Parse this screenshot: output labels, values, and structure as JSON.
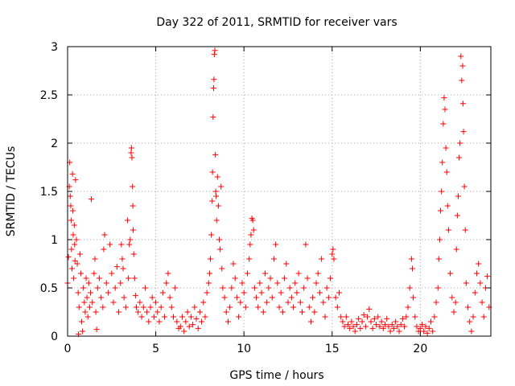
{
  "chart_data": {
    "type": "scatter",
    "title": "Day 322 of 2011, SRMTID for receiver vars",
    "xlabel": "GPS time / hours",
    "ylabel": "SRMTID / TECUs",
    "xlim": [
      0,
      24
    ],
    "ylim": [
      0,
      3
    ],
    "x_ticks": [
      0,
      5,
      10,
      15,
      20
    ],
    "x_tick_labels": [
      "0",
      "5",
      "10",
      "15",
      "20"
    ],
    "y_ticks": [
      0,
      0.5,
      1,
      1.5,
      2,
      2.5,
      3
    ],
    "y_tick_labels": [
      "0",
      "0.5",
      "1",
      "1.5",
      "2",
      "2.5",
      "3"
    ],
    "grid": true,
    "marker": "plus",
    "point_color": "#ff0000",
    "series": [
      {
        "points": [
          [
            0.0,
            0.55
          ],
          [
            0.05,
            0.82
          ],
          [
            0.1,
            1.55
          ],
          [
            0.12,
            1.8
          ],
          [
            0.15,
            1.45
          ],
          [
            0.18,
            1.35
          ],
          [
            0.2,
            1.2
          ],
          [
            0.22,
            0.9
          ],
          [
            0.25,
            0.7
          ],
          [
            0.28,
            1.68
          ],
          [
            0.3,
            1.3
          ],
          [
            0.32,
            1.05
          ],
          [
            0.35,
            0.6
          ],
          [
            0.38,
            1.15
          ],
          [
            0.4,
            0.95
          ],
          [
            0.42,
            0.78
          ],
          [
            0.45,
            1.62
          ],
          [
            0.5,
            1.0
          ],
          [
            0.55,
            0.75
          ],
          [
            0.6,
            0.45
          ],
          [
            0.62,
            0.02
          ],
          [
            0.65,
            0.3
          ],
          [
            0.7,
            0.85
          ],
          [
            0.75,
            0.65
          ],
          [
            0.8,
            0.15
          ],
          [
            0.85,
            0.05
          ],
          [
            0.9,
            0.5
          ],
          [
            0.95,
            0.35
          ],
          [
            1.0,
            0.25
          ],
          [
            1.05,
            0.6
          ],
          [
            1.1,
            0.4
          ],
          [
            1.15,
            0.2
          ],
          [
            1.2,
            0.55
          ],
          [
            1.25,
            0.3
          ],
          [
            1.3,
            0.45
          ],
          [
            1.35,
            1.42
          ],
          [
            1.4,
            0.35
          ],
          [
            1.5,
            0.65
          ],
          [
            1.55,
            0.8
          ],
          [
            1.6,
            0.25
          ],
          [
            1.65,
            0.07
          ],
          [
            1.7,
            0.5
          ],
          [
            1.8,
            0.6
          ],
          [
            1.9,
            0.4
          ],
          [
            2.0,
            0.3
          ],
          [
            2.05,
            0.9
          ],
          [
            2.1,
            1.05
          ],
          [
            2.2,
            0.55
          ],
          [
            2.3,
            0.45
          ],
          [
            2.4,
            0.95
          ],
          [
            2.5,
            0.65
          ],
          [
            2.6,
            0.35
          ],
          [
            2.7,
            0.5
          ],
          [
            2.8,
            0.72
          ],
          [
            2.9,
            0.25
          ],
          [
            3.0,
            0.55
          ],
          [
            3.05,
            0.95
          ],
          [
            3.1,
            0.8
          ],
          [
            3.15,
            0.7
          ],
          [
            3.2,
            0.4
          ],
          [
            3.3,
            0.3
          ],
          [
            3.4,
            1.2
          ],
          [
            3.45,
            0.6
          ],
          [
            3.5,
            0.95
          ],
          [
            3.55,
            1.0
          ],
          [
            3.6,
            1.9
          ],
          [
            3.62,
            1.95
          ],
          [
            3.65,
            1.85
          ],
          [
            3.68,
            1.55
          ],
          [
            3.7,
            1.35
          ],
          [
            3.72,
            1.1
          ],
          [
            3.75,
            0.85
          ],
          [
            3.8,
            0.6
          ],
          [
            3.85,
            0.42
          ],
          [
            3.9,
            0.3
          ],
          [
            4.0,
            0.25
          ],
          [
            4.1,
            0.35
          ],
          [
            4.2,
            0.2
          ],
          [
            4.3,
            0.3
          ],
          [
            4.4,
            0.5
          ],
          [
            4.5,
            0.25
          ],
          [
            4.6,
            0.15
          ],
          [
            4.7,
            0.3
          ],
          [
            4.8,
            0.4
          ],
          [
            4.9,
            0.2
          ],
          [
            5.0,
            0.35
          ],
          [
            5.1,
            0.25
          ],
          [
            5.2,
            0.15
          ],
          [
            5.3,
            0.3
          ],
          [
            5.4,
            0.45
          ],
          [
            5.5,
            0.2
          ],
          [
            5.6,
            0.55
          ],
          [
            5.7,
            0.65
          ],
          [
            5.8,
            0.4
          ],
          [
            5.9,
            0.3
          ],
          [
            6.0,
            0.2
          ],
          [
            6.1,
            0.5
          ],
          [
            6.2,
            0.15
          ],
          [
            6.3,
            0.08
          ],
          [
            6.4,
            0.1
          ],
          [
            6.5,
            0.2
          ],
          [
            6.6,
            0.05
          ],
          [
            6.7,
            0.15
          ],
          [
            6.8,
            0.25
          ],
          [
            6.9,
            0.1
          ],
          [
            7.0,
            0.2
          ],
          [
            7.1,
            0.12
          ],
          [
            7.2,
            0.3
          ],
          [
            7.3,
            0.18
          ],
          [
            7.4,
            0.08
          ],
          [
            7.5,
            0.25
          ],
          [
            7.6,
            0.15
          ],
          [
            7.7,
            0.35
          ],
          [
            7.8,
            0.2
          ],
          [
            7.9,
            0.45
          ],
          [
            8.0,
            0.55
          ],
          [
            8.05,
            0.65
          ],
          [
            8.1,
            0.8
          ],
          [
            8.15,
            1.05
          ],
          [
            8.2,
            1.4
          ],
          [
            8.22,
            1.7
          ],
          [
            8.25,
            2.27
          ],
          [
            8.28,
            2.57
          ],
          [
            8.3,
            2.66
          ],
          [
            8.32,
            2.92
          ],
          [
            8.35,
            2.96
          ],
          [
            8.38,
            1.88
          ],
          [
            8.4,
            1.5
          ],
          [
            8.42,
            1.45
          ],
          [
            8.45,
            1.2
          ],
          [
            8.5,
            1.65
          ],
          [
            8.55,
            1.35
          ],
          [
            8.6,
            1.0
          ],
          [
            8.65,
            0.9
          ],
          [
            8.7,
            1.55
          ],
          [
            8.75,
            0.7
          ],
          [
            8.8,
            0.5
          ],
          [
            8.9,
            0.4
          ],
          [
            9.0,
            0.25
          ],
          [
            9.1,
            0.15
          ],
          [
            9.2,
            0.3
          ],
          [
            9.3,
            0.5
          ],
          [
            9.4,
            0.75
          ],
          [
            9.5,
            0.6
          ],
          [
            9.6,
            0.4
          ],
          [
            9.7,
            0.2
          ],
          [
            9.8,
            0.35
          ],
          [
            9.9,
            0.55
          ],
          [
            10.0,
            0.45
          ],
          [
            10.1,
            0.3
          ],
          [
            10.2,
            0.65
          ],
          [
            10.3,
            0.8
          ],
          [
            10.35,
            0.95
          ],
          [
            10.4,
            1.05
          ],
          [
            10.45,
            1.22
          ],
          [
            10.5,
            1.2
          ],
          [
            10.55,
            1.1
          ],
          [
            10.6,
            0.5
          ],
          [
            10.7,
            0.4
          ],
          [
            10.8,
            0.3
          ],
          [
            10.9,
            0.55
          ],
          [
            11.0,
            0.45
          ],
          [
            11.1,
            0.25
          ],
          [
            11.2,
            0.65
          ],
          [
            11.3,
            0.35
          ],
          [
            11.4,
            0.5
          ],
          [
            11.5,
            0.6
          ],
          [
            11.6,
            0.4
          ],
          [
            11.7,
            0.8
          ],
          [
            11.8,
            0.95
          ],
          [
            11.9,
            0.55
          ],
          [
            12.0,
            0.3
          ],
          [
            12.1,
            0.45
          ],
          [
            12.2,
            0.25
          ],
          [
            12.3,
            0.6
          ],
          [
            12.4,
            0.75
          ],
          [
            12.5,
            0.35
          ],
          [
            12.6,
            0.5
          ],
          [
            12.7,
            0.4
          ],
          [
            12.8,
            0.3
          ],
          [
            12.9,
            0.55
          ],
          [
            13.0,
            0.45
          ],
          [
            13.1,
            0.65
          ],
          [
            13.2,
            0.35
          ],
          [
            13.3,
            0.25
          ],
          [
            13.4,
            0.5
          ],
          [
            13.5,
            0.95
          ],
          [
            13.6,
            0.6
          ],
          [
            13.7,
            0.3
          ],
          [
            13.8,
            0.15
          ],
          [
            13.9,
            0.4
          ],
          [
            14.0,
            0.25
          ],
          [
            14.1,
            0.55
          ],
          [
            14.2,
            0.65
          ],
          [
            14.3,
            0.45
          ],
          [
            14.4,
            0.8
          ],
          [
            14.5,
            0.35
          ],
          [
            14.6,
            0.2
          ],
          [
            14.7,
            0.5
          ],
          [
            14.8,
            0.4
          ],
          [
            14.9,
            0.6
          ],
          [
            15.0,
            0.85
          ],
          [
            15.05,
            0.9
          ],
          [
            15.1,
            0.8
          ],
          [
            15.2,
            0.4
          ],
          [
            15.3,
            0.3
          ],
          [
            15.4,
            0.45
          ],
          [
            15.5,
            0.2
          ],
          [
            15.6,
            0.15
          ],
          [
            15.7,
            0.1
          ],
          [
            15.8,
            0.2
          ],
          [
            15.9,
            0.12
          ],
          [
            16.0,
            0.08
          ],
          [
            16.1,
            0.15
          ],
          [
            16.2,
            0.1
          ],
          [
            16.3,
            0.05
          ],
          [
            16.4,
            0.12
          ],
          [
            16.5,
            0.18
          ],
          [
            16.6,
            0.08
          ],
          [
            16.7,
            0.15
          ],
          [
            16.8,
            0.22
          ],
          [
            16.9,
            0.1
          ],
          [
            17.0,
            0.2
          ],
          [
            17.1,
            0.28
          ],
          [
            17.2,
            0.15
          ],
          [
            17.3,
            0.08
          ],
          [
            17.4,
            0.18
          ],
          [
            17.5,
            0.12
          ],
          [
            17.6,
            0.2
          ],
          [
            17.7,
            0.1
          ],
          [
            17.8,
            0.15
          ],
          [
            17.9,
            0.08
          ],
          [
            18.0,
            0.12
          ],
          [
            18.1,
            0.18
          ],
          [
            18.2,
            0.1
          ],
          [
            18.3,
            0.05
          ],
          [
            18.4,
            0.12
          ],
          [
            18.5,
            0.08
          ],
          [
            18.6,
            0.15
          ],
          [
            18.7,
            0.1
          ],
          [
            18.8,
            0.05
          ],
          [
            18.9,
            0.12
          ],
          [
            19.0,
            0.18
          ],
          [
            19.1,
            0.1
          ],
          [
            19.2,
            0.2
          ],
          [
            19.3,
            0.3
          ],
          [
            19.4,
            0.5
          ],
          [
            19.5,
            0.8
          ],
          [
            19.55,
            0.7
          ],
          [
            19.6,
            0.4
          ],
          [
            19.7,
            0.2
          ],
          [
            19.8,
            0.1
          ],
          [
            19.9,
            0.05
          ],
          [
            20.0,
            0.08
          ],
          [
            20.1,
            0.12
          ],
          [
            20.2,
            0.05
          ],
          [
            20.3,
            0.1
          ],
          [
            20.4,
            0.03
          ],
          [
            20.5,
            0.08
          ],
          [
            20.6,
            0.15
          ],
          [
            20.7,
            0.05
          ],
          [
            20.8,
            0.2
          ],
          [
            20.9,
            0.35
          ],
          [
            21.0,
            0.5
          ],
          [
            21.05,
            0.8
          ],
          [
            21.1,
            1.0
          ],
          [
            21.15,
            1.3
          ],
          [
            21.2,
            1.5
          ],
          [
            21.25,
            1.8
          ],
          [
            21.3,
            2.2
          ],
          [
            21.35,
            2.47
          ],
          [
            21.4,
            2.35
          ],
          [
            21.45,
            1.95
          ],
          [
            21.5,
            1.7
          ],
          [
            21.55,
            1.35
          ],
          [
            21.6,
            1.1
          ],
          [
            21.7,
            0.65
          ],
          [
            21.8,
            0.4
          ],
          [
            21.9,
            0.25
          ],
          [
            22.0,
            0.35
          ],
          [
            22.05,
            0.9
          ],
          [
            22.1,
            1.25
          ],
          [
            22.15,
            1.45
          ],
          [
            22.2,
            1.85
          ],
          [
            22.25,
            2.0
          ],
          [
            22.3,
            2.9
          ],
          [
            22.35,
            2.65
          ],
          [
            22.4,
            2.8
          ],
          [
            22.42,
            2.41
          ],
          [
            22.45,
            2.12
          ],
          [
            22.5,
            1.55
          ],
          [
            22.55,
            1.1
          ],
          [
            22.6,
            0.55
          ],
          [
            22.7,
            0.3
          ],
          [
            22.8,
            0.15
          ],
          [
            22.9,
            0.05
          ],
          [
            23.0,
            0.2
          ],
          [
            23.1,
            0.45
          ],
          [
            23.2,
            0.65
          ],
          [
            23.3,
            0.75
          ],
          [
            23.4,
            0.55
          ],
          [
            23.5,
            0.35
          ],
          [
            23.6,
            0.2
          ],
          [
            23.7,
            0.5
          ],
          [
            23.8,
            0.62
          ],
          [
            23.9,
            0.3
          ]
        ]
      }
    ]
  }
}
